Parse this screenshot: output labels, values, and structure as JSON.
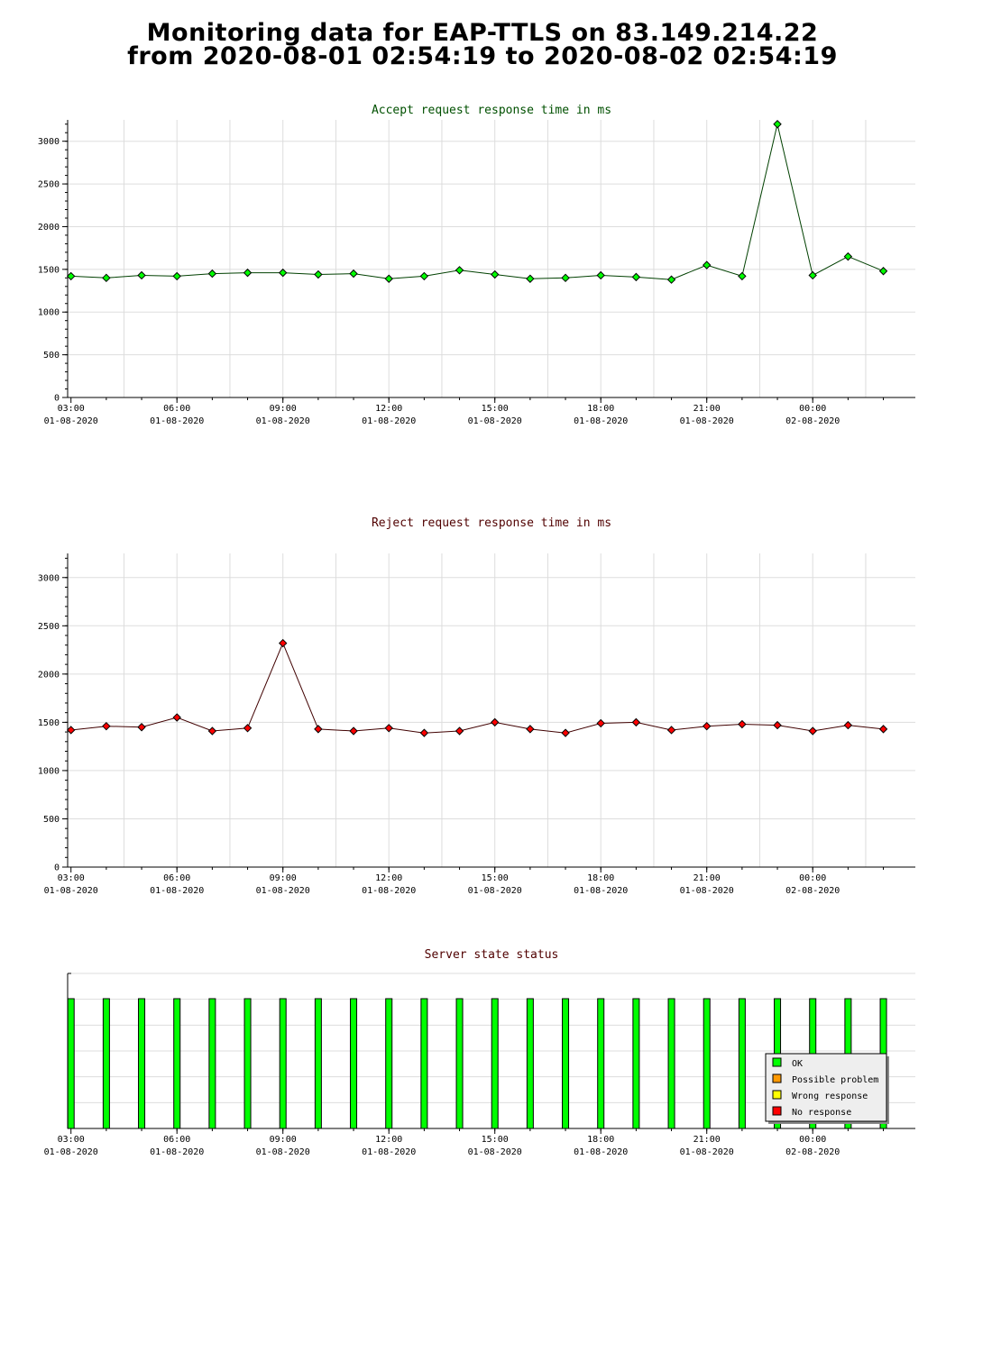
{
  "page": {
    "title_line1": "Monitoring data for EAP-TTLS on 83.149.214.22",
    "title_line2": "from 2020-08-01 02:54:19 to 2020-08-02 02:54:19"
  },
  "colors": {
    "accept_title": "#005000",
    "reject_title": "#500000",
    "status_title": "#500000",
    "accept_marker": "#00ff00",
    "reject_marker": "#ff0000",
    "grid": "#dddddd",
    "ok": "#00ff00",
    "possible_problem": "#ff9900",
    "wrong_response": "#ffff00",
    "no_response": "#ff0000"
  },
  "x_ticks": [
    {
      "time": "03:00",
      "date": "01-08-2020"
    },
    {
      "time": "06:00",
      "date": "01-08-2020"
    },
    {
      "time": "09:00",
      "date": "01-08-2020"
    },
    {
      "time": "12:00",
      "date": "01-08-2020"
    },
    {
      "time": "15:00",
      "date": "01-08-2020"
    },
    {
      "time": "18:00",
      "date": "01-08-2020"
    },
    {
      "time": "21:00",
      "date": "01-08-2020"
    },
    {
      "time": "00:00",
      "date": "02-08-2020"
    }
  ],
  "chart_data": [
    {
      "type": "line",
      "title": "Accept request response time in ms",
      "x_range": [
        "2020-08-01 02:54:19",
        "2020-08-02 02:54:19"
      ],
      "ylim": [
        0,
        3250
      ],
      "y_ticks": [
        0,
        500,
        1000,
        1500,
        2000,
        2500,
        3000
      ],
      "grid": true,
      "series": [
        {
          "x": [
            "2020-08-01 03:00",
            "2020-08-01 04:00",
            "2020-08-01 05:00",
            "2020-08-01 06:00",
            "2020-08-01 07:00",
            "2020-08-01 08:00",
            "2020-08-01 09:00",
            "2020-08-01 10:00",
            "2020-08-01 11:00",
            "2020-08-01 12:00",
            "2020-08-01 13:00",
            "2020-08-01 14:00",
            "2020-08-01 15:00",
            "2020-08-01 16:00",
            "2020-08-01 17:00",
            "2020-08-01 18:00",
            "2020-08-01 19:00",
            "2020-08-01 20:00",
            "2020-08-01 21:00",
            "2020-08-01 22:00",
            "2020-08-01 23:00",
            "2020-08-02 00:00",
            "2020-08-02 01:00",
            "2020-08-02 02:00"
          ],
          "values": [
            1420,
            1400,
            1430,
            1420,
            1450,
            1460,
            1460,
            1440,
            1450,
            1390,
            1420,
            1490,
            1440,
            1390,
            1400,
            1430,
            1410,
            1380,
            1550,
            1420,
            3200,
            1430,
            1650,
            1480
          ]
        }
      ]
    },
    {
      "type": "line",
      "title": "Reject request response time in ms",
      "x_range": [
        "2020-08-01 02:54:19",
        "2020-08-02 02:54:19"
      ],
      "ylim": [
        0,
        3250
      ],
      "y_ticks": [
        0,
        500,
        1000,
        1500,
        2000,
        2500,
        3000
      ],
      "grid": true,
      "series": [
        {
          "x": [
            "2020-08-01 03:00",
            "2020-08-01 04:00",
            "2020-08-01 05:00",
            "2020-08-01 06:00",
            "2020-08-01 07:00",
            "2020-08-01 08:00",
            "2020-08-01 09:00",
            "2020-08-01 10:00",
            "2020-08-01 11:00",
            "2020-08-01 12:00",
            "2020-08-01 13:00",
            "2020-08-01 14:00",
            "2020-08-01 15:00",
            "2020-08-01 16:00",
            "2020-08-01 17:00",
            "2020-08-01 18:00",
            "2020-08-01 19:00",
            "2020-08-01 20:00",
            "2020-08-01 21:00",
            "2020-08-01 22:00",
            "2020-08-01 23:00",
            "2020-08-02 00:00",
            "2020-08-02 01:00",
            "2020-08-02 02:00"
          ],
          "values": [
            1420,
            1460,
            1450,
            1550,
            1410,
            1440,
            2320,
            1430,
            1410,
            1440,
            1390,
            1410,
            1500,
            1430,
            1390,
            1490,
            1500,
            1420,
            1460,
            1480,
            1470,
            1410,
            1470,
            1430
          ]
        }
      ]
    },
    {
      "type": "bar",
      "title": "Server state status",
      "x_range": [
        "2020-08-01 02:54:19",
        "2020-08-02 02:54:19"
      ],
      "x": [
        "2020-08-01 03:00",
        "2020-08-01 04:00",
        "2020-08-01 05:00",
        "2020-08-01 06:00",
        "2020-08-01 07:00",
        "2020-08-01 08:00",
        "2020-08-01 09:00",
        "2020-08-01 10:00",
        "2020-08-01 11:00",
        "2020-08-01 12:00",
        "2020-08-01 13:00",
        "2020-08-01 14:00",
        "2020-08-01 15:00",
        "2020-08-01 16:00",
        "2020-08-01 17:00",
        "2020-08-01 18:00",
        "2020-08-01 19:00",
        "2020-08-01 20:00",
        "2020-08-01 21:00",
        "2020-08-01 22:00",
        "2020-08-01 23:00",
        "2020-08-02 00:00",
        "2020-08-02 01:00",
        "2020-08-02 02:00"
      ],
      "states": [
        "OK",
        "OK",
        "OK",
        "OK",
        "OK",
        "OK",
        "OK",
        "OK",
        "OK",
        "OK",
        "OK",
        "OK",
        "OK",
        "OK",
        "OK",
        "OK",
        "OK",
        "OK",
        "OK",
        "OK",
        "OK",
        "OK",
        "OK",
        "OK"
      ],
      "legend": [
        "OK",
        "Possible problem",
        "Wrong response",
        "No response"
      ],
      "legend_position": "bottom-right"
    }
  ]
}
